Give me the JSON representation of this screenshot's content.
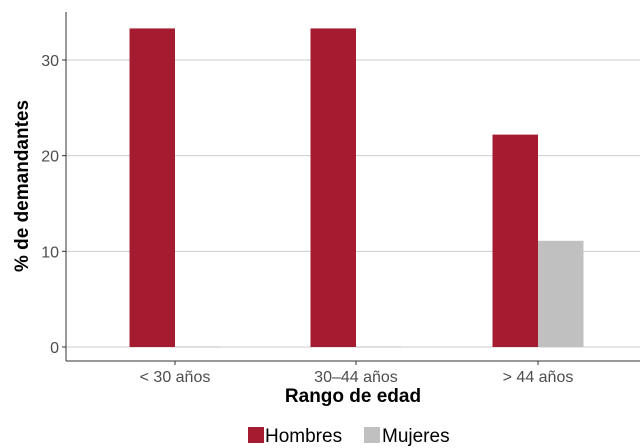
{
  "chart_data": {
    "type": "bar",
    "xlabel": "Rango de edad",
    "ylabel": "% de demandantes",
    "categories": [
      "< 30 años",
      "30–44 años",
      "> 44 años"
    ],
    "series": [
      {
        "name": "Hombres",
        "values": [
          33.3,
          33.3,
          22.2
        ],
        "color": "#a51c30"
      },
      {
        "name": "Mujeres",
        "values": [
          0,
          0,
          11.1
        ],
        "color": "#c0c0c0"
      }
    ],
    "ylim": [
      0,
      35
    ],
    "yticks": [
      0,
      10,
      20,
      30
    ],
    "grid": {
      "horizontal": true,
      "vertical": false
    },
    "legend_position": "bottom"
  }
}
